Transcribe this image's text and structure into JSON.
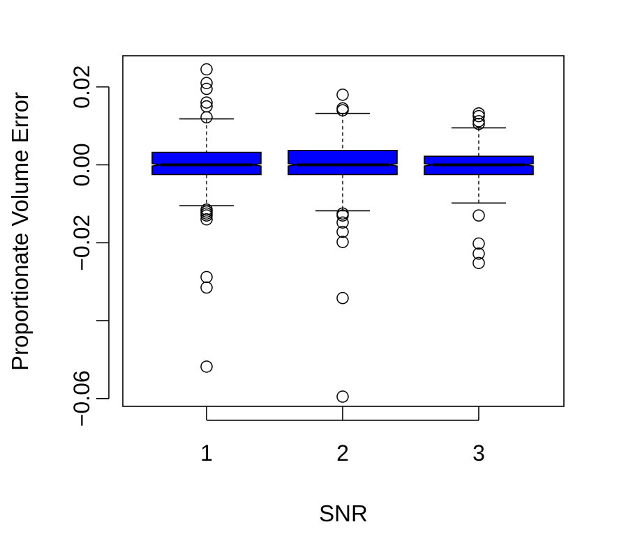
{
  "chart_data": {
    "type": "boxplot",
    "notched": true,
    "xlabel": "SNR",
    "ylabel": "Proportionate Volume Error",
    "categories": [
      "1",
      "2",
      "3"
    ],
    "ylim": [
      -0.062,
      0.028
    ],
    "y_ticks": [
      -0.06,
      -0.04,
      -0.02,
      0.0,
      0.02
    ],
    "y_tick_labels": [
      "-0.06",
      "",
      "-0.02",
      "0.00",
      "0.02"
    ],
    "box_color": "#0000ff",
    "boxes": [
      {
        "category": "1",
        "whisker_low": -0.0105,
        "q1": -0.0025,
        "median": 0.0,
        "q3": 0.0032,
        "whisker_high": 0.0118,
        "notch_low": -0.0003,
        "notch_high": 0.0003,
        "outliers": [
          0.0245,
          0.021,
          0.0195,
          0.016,
          0.015,
          0.0122,
          -0.0115,
          -0.012,
          -0.0125,
          -0.013,
          -0.014,
          -0.0288,
          -0.0315,
          -0.0518
        ]
      },
      {
        "category": "2",
        "whisker_low": -0.0118,
        "q1": -0.0025,
        "median": 0.0,
        "q3": 0.0037,
        "whisker_high": 0.0132,
        "notch_low": -0.0003,
        "notch_high": 0.0003,
        "outliers": [
          0.018,
          0.0145,
          0.014,
          -0.0125,
          -0.013,
          -0.0148,
          -0.0172,
          -0.0198,
          -0.0342,
          -0.0595
        ]
      },
      {
        "category": "3",
        "whisker_low": -0.0098,
        "q1": -0.0025,
        "median": 0.0,
        "q3": 0.0022,
        "whisker_high": 0.0095,
        "notch_low": -0.0003,
        "notch_high": 0.0003,
        "outliers": [
          0.0132,
          0.0125,
          0.0112,
          0.0105,
          -0.013,
          -0.0202,
          -0.0228,
          -0.0252
        ]
      }
    ]
  }
}
